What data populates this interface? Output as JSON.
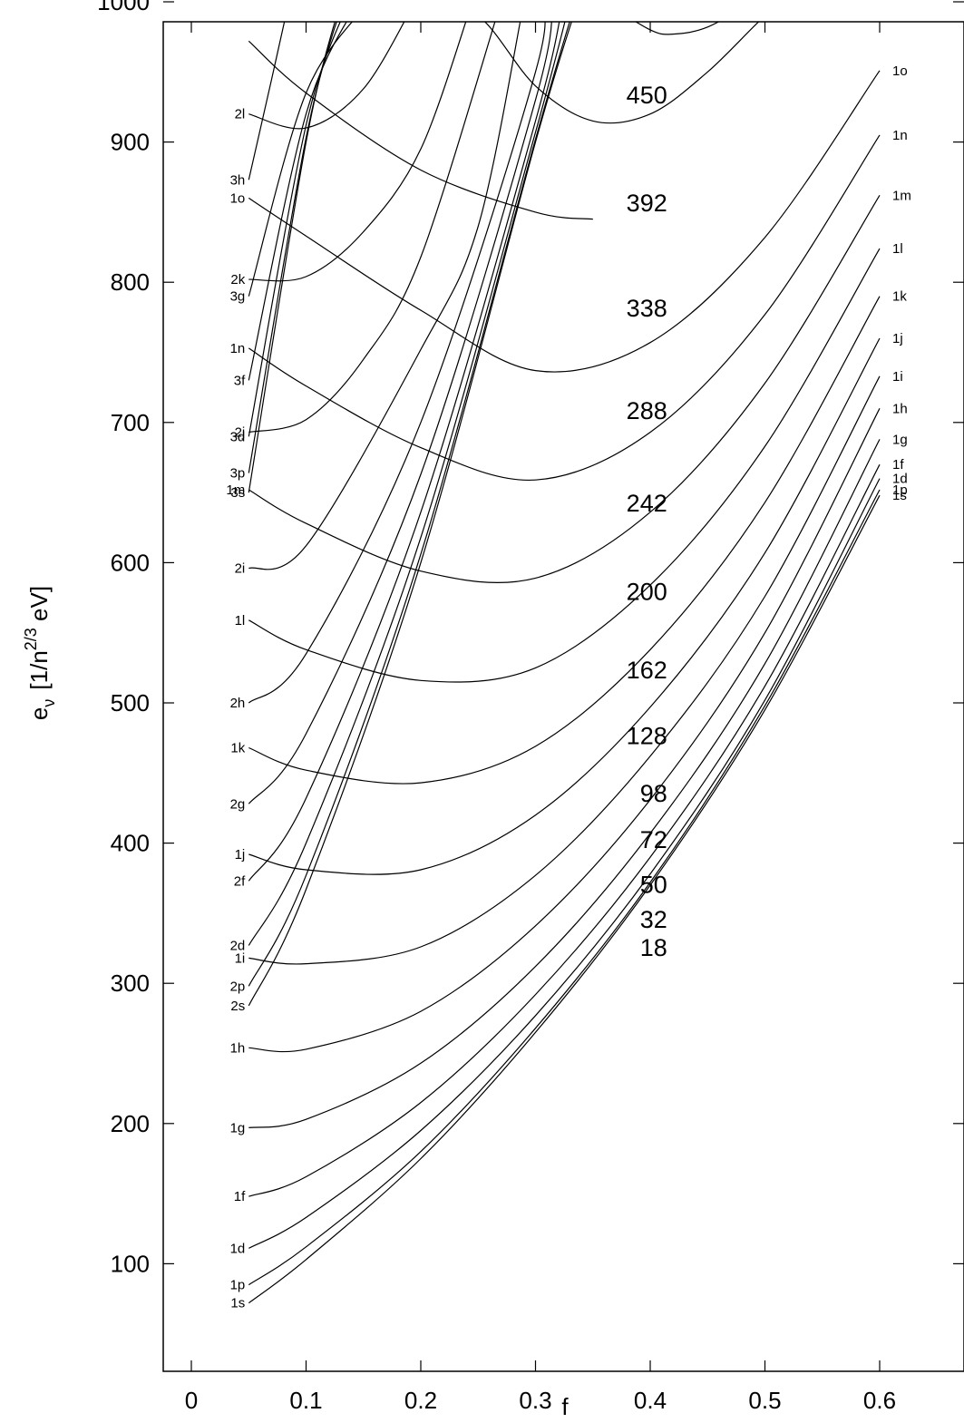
{
  "chart_data": {
    "type": "line",
    "title": "",
    "xlabel": "f",
    "ylabel": {
      "base": "e",
      "sub": "ν",
      "unit_prefix": "[1/n",
      "unit_sup": "2/3",
      "unit_suffix": " eV]"
    },
    "xlim": [
      -0.025,
      0.675
    ],
    "ylim": [
      50,
      1000
    ],
    "x_ticks": [
      "0",
      "0.1",
      "0.2",
      "0.3",
      "0.4",
      "0.5",
      "0.6"
    ],
    "y_ticks": [
      "100",
      "200",
      "300",
      "400",
      "500",
      "600",
      "700",
      "800",
      "900",
      "1000"
    ],
    "grid": false,
    "legend": "none",
    "series": [
      {
        "name": "1s",
        "x": [
          0.05,
          0.1,
          0.2,
          0.3,
          0.4,
          0.5,
          0.6
        ],
        "y": [
          72,
          103,
          175,
          265,
          370,
          495,
          648
        ]
      },
      {
        "name": "1p",
        "x": [
          0.05,
          0.1,
          0.2,
          0.3,
          0.4,
          0.5,
          0.6
        ],
        "y": [
          85,
          112,
          180,
          268,
          372,
          498,
          652
        ]
      },
      {
        "name": "1d",
        "x": [
          0.05,
          0.1,
          0.2,
          0.3,
          0.4,
          0.5,
          0.6
        ],
        "y": [
          111,
          133,
          195,
          277,
          378,
          502,
          660
        ]
      },
      {
        "name": "1f",
        "x": [
          0.05,
          0.1,
          0.2,
          0.3,
          0.4,
          0.5,
          0.6
        ],
        "y": [
          148,
          162,
          215,
          292,
          390,
          512,
          670
        ]
      },
      {
        "name": "1g",
        "x": [
          0.05,
          0.1,
          0.2,
          0.3,
          0.4,
          0.5,
          0.6
        ],
        "y": [
          197,
          203,
          243,
          312,
          407,
          528,
          688
        ]
      },
      {
        "name": "1h",
        "x": [
          0.05,
          0.1,
          0.2,
          0.3,
          0.4,
          0.5,
          0.6
        ],
        "y": [
          254,
          253,
          280,
          341,
          431,
          550,
          710
        ]
      },
      {
        "name": "1i",
        "x": [
          0.05,
          0.1,
          0.2,
          0.3,
          0.4,
          0.5,
          0.6
        ],
        "y": [
          318,
          314,
          326,
          377,
          462,
          576,
          733
        ]
      },
      {
        "name": "1j",
        "x": [
          0.05,
          0.1,
          0.2,
          0.3,
          0.4,
          0.5,
          0.6
        ],
        "y": [
          392,
          381,
          381,
          420,
          497,
          607,
          760
        ]
      },
      {
        "name": "1k",
        "x": [
          0.05,
          0.1,
          0.2,
          0.3,
          0.4,
          0.5,
          0.6
        ],
        "y": [
          468,
          452,
          443,
          469,
          538,
          643,
          790
        ]
      },
      {
        "name": "1l",
        "x": [
          0.05,
          0.1,
          0.2,
          0.3,
          0.4,
          0.5,
          0.6
        ],
        "y": [
          559,
          538,
          516,
          525,
          584,
          683,
          824
        ]
      },
      {
        "name": "1m",
        "x": [
          0.05,
          0.1,
          0.2,
          0.3,
          0.4,
          0.5,
          0.6
        ],
        "y": [
          652,
          628,
          594,
          589,
          636,
          728,
          862
        ]
      },
      {
        "name": "1n",
        "x": [
          0.05,
          0.1,
          0.2,
          0.3,
          0.4,
          0.5,
          0.6
        ],
        "y": [
          753,
          726,
          682,
          659,
          693,
          777,
          905
        ]
      },
      {
        "name": "1o",
        "x": [
          0.05,
          0.1,
          0.2,
          0.3,
          0.4,
          0.5,
          0.6
        ],
        "y": [
          860,
          833,
          780,
          737,
          757,
          832,
          951
        ]
      },
      {
        "name": "2s",
        "x": [
          0.05,
          0.1,
          0.2,
          0.3,
          0.337
        ],
        "y": [
          284,
          367,
          600,
          900,
          1000
        ]
      },
      {
        "name": "2p",
        "x": [
          0.05,
          0.1,
          0.2,
          0.3,
          0.335
        ],
        "y": [
          298,
          377,
          606,
          902,
          1000
        ]
      },
      {
        "name": "2d",
        "x": [
          0.05,
          0.1,
          0.2,
          0.3,
          0.33
        ],
        "y": [
          327,
          400,
          618,
          907,
          1000
        ]
      },
      {
        "name": "2f",
        "x": [
          0.05,
          0.1,
          0.2,
          0.3,
          0.324
        ],
        "y": [
          373,
          432,
          636,
          915,
          1000
        ]
      },
      {
        "name": "2g",
        "x": [
          0.05,
          0.1,
          0.2,
          0.3,
          0.315
        ],
        "y": [
          428,
          478,
          663,
          930,
          1000
        ]
      },
      {
        "name": "2h",
        "x": [
          0.05,
          0.1,
          0.2,
          0.3,
          0.303
        ],
        "y": [
          500,
          535,
          700,
          950,
          1000
        ]
      },
      {
        "name": "2i",
        "x": [
          0.05,
          0.1,
          0.2,
          0.25,
          0.29
        ],
        "y": [
          596,
          612,
          752,
          840,
          1000
        ]
      },
      {
        "name": "2j",
        "x": [
          0.05,
          0.1,
          0.15,
          0.2,
          0.27
        ],
        "y": [
          693,
          702,
          745,
          818,
          1000
        ]
      },
      {
        "name": "2k",
        "x": [
          0.05,
          0.1,
          0.15,
          0.2,
          0.245
        ],
        "y": [
          802,
          804,
          836,
          895,
          1000
        ]
      },
      {
        "name": "2l",
        "x": [
          0.05,
          0.1,
          0.15,
          0.195
        ],
        "y": [
          920,
          910,
          938,
          1000
        ]
      },
      {
        "name": "3s",
        "x": [
          0.05,
          0.1,
          0.13
        ],
        "y": [
          650,
          900,
          1000
        ]
      },
      {
        "name": "3p",
        "x": [
          0.05,
          0.1,
          0.132
        ],
        "y": [
          664,
          903,
          1000
        ]
      },
      {
        "name": "3d",
        "x": [
          0.05,
          0.1,
          0.137
        ],
        "y": [
          690,
          912,
          1000
        ]
      },
      {
        "name": "3f",
        "x": [
          0.05,
          0.1,
          0.145
        ],
        "y": [
          730,
          920,
          1000
        ]
      },
      {
        "name": "3g",
        "x": [
          0.05,
          0.1,
          0.155
        ],
        "y": [
          790,
          935,
          1000
        ]
      },
      {
        "name": "3h",
        "x": [
          0.05,
          0.07,
          0.085
        ],
        "y": [
          873,
          945,
          1000
        ]
      },
      {
        "name": "",
        "x": [
          0.05,
          0.1,
          0.2,
          0.3,
          0.35
        ],
        "y": [
          972,
          935,
          880,
          850,
          845
        ]
      },
      {
        "name": "",
        "x": [
          0.2,
          0.25,
          0.3,
          0.35,
          0.4,
          0.45,
          0.5,
          0.52
        ],
        "y": [
          1000,
          990,
          940,
          915,
          920,
          950,
          990,
          1000
        ]
      },
      {
        "name": "",
        "x": [
          0.36,
          0.4,
          0.42,
          0.45,
          0.49
        ],
        "y": [
          1000,
          980,
          977,
          982,
          1000
        ]
      }
    ],
    "curve_labels_left": [
      "2l",
      "3h",
      "1o",
      "2k",
      "3g",
      "1n",
      "3f",
      "2j",
      "3d",
      "3p",
      "1m",
      "3s",
      "2i",
      "1l",
      "2h",
      "1k",
      "2g",
      "1j",
      "2f",
      "2d",
      "1i",
      "2p",
      "2s",
      "1h",
      "1g",
      "1f",
      "1d",
      "1p",
      "1s"
    ],
    "curve_labels_right": [
      "1o",
      "1n",
      "1m",
      "1l",
      "1k",
      "1j",
      "1i",
      "1h",
      "1g",
      "1f",
      "1d",
      "1p",
      "1s"
    ],
    "annotations": [
      {
        "text": "450",
        "x": 0.397,
        "y": 934
      },
      {
        "text": "392",
        "x": 0.397,
        "y": 857
      },
      {
        "text": "338",
        "x": 0.397,
        "y": 782
      },
      {
        "text": "288",
        "x": 0.397,
        "y": 709
      },
      {
        "text": "242",
        "x": 0.397,
        "y": 643
      },
      {
        "text": "200",
        "x": 0.397,
        "y": 580
      },
      {
        "text": "162",
        "x": 0.397,
        "y": 524
      },
      {
        "text": "128",
        "x": 0.397,
        "y": 477
      },
      {
        "text": "98",
        "x": 0.403,
        "y": 436
      },
      {
        "text": "72",
        "x": 0.403,
        "y": 403
      },
      {
        "text": "50",
        "x": 0.403,
        "y": 371
      },
      {
        "text": "32",
        "x": 0.403,
        "y": 346
      },
      {
        "text": "18",
        "x": 0.403,
        "y": 326
      }
    ]
  }
}
